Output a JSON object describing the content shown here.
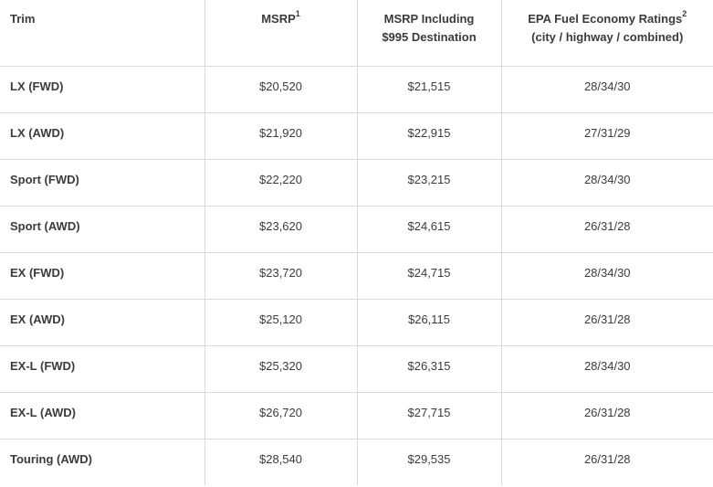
{
  "table": {
    "headers": {
      "trim": "Trim",
      "msrp": "MSRP",
      "msrp_note": "1",
      "destination_line1": "MSRP Including",
      "destination_line2": "$995 Destination",
      "epa_line1": "EPA Fuel Economy Ratings",
      "epa_note": "2",
      "epa_line2": "(city / highway / combined)"
    },
    "rows": [
      {
        "trim": "LX (FWD)",
        "msrp": "$20,520",
        "msrp_dest": "$21,515",
        "epa": "28/34/30"
      },
      {
        "trim": "LX (AWD)",
        "msrp": "$21,920",
        "msrp_dest": "$22,915",
        "epa": "27/31/29"
      },
      {
        "trim": "Sport (FWD)",
        "msrp": "$22,220",
        "msrp_dest": "$23,215",
        "epa": "28/34/30"
      },
      {
        "trim": "Sport (AWD)",
        "msrp": "$23,620",
        "msrp_dest": "$24,615",
        "epa": "26/31/28"
      },
      {
        "trim": "EX (FWD)",
        "msrp": "$23,720",
        "msrp_dest": "$24,715",
        "epa": "28/34/30"
      },
      {
        "trim": "EX (AWD)",
        "msrp": "$25,120",
        "msrp_dest": "$26,115",
        "epa": "26/31/28"
      },
      {
        "trim": "EX-L (FWD)",
        "msrp": "$25,320",
        "msrp_dest": "$26,315",
        "epa": "28/34/30"
      },
      {
        "trim": "EX-L (AWD)",
        "msrp": "$26,720",
        "msrp_dest": "$27,715",
        "epa": "26/31/28"
      },
      {
        "trim": "Touring (AWD)",
        "msrp": "$28,540",
        "msrp_dest": "$29,535",
        "epa": "26/31/28"
      }
    ]
  }
}
